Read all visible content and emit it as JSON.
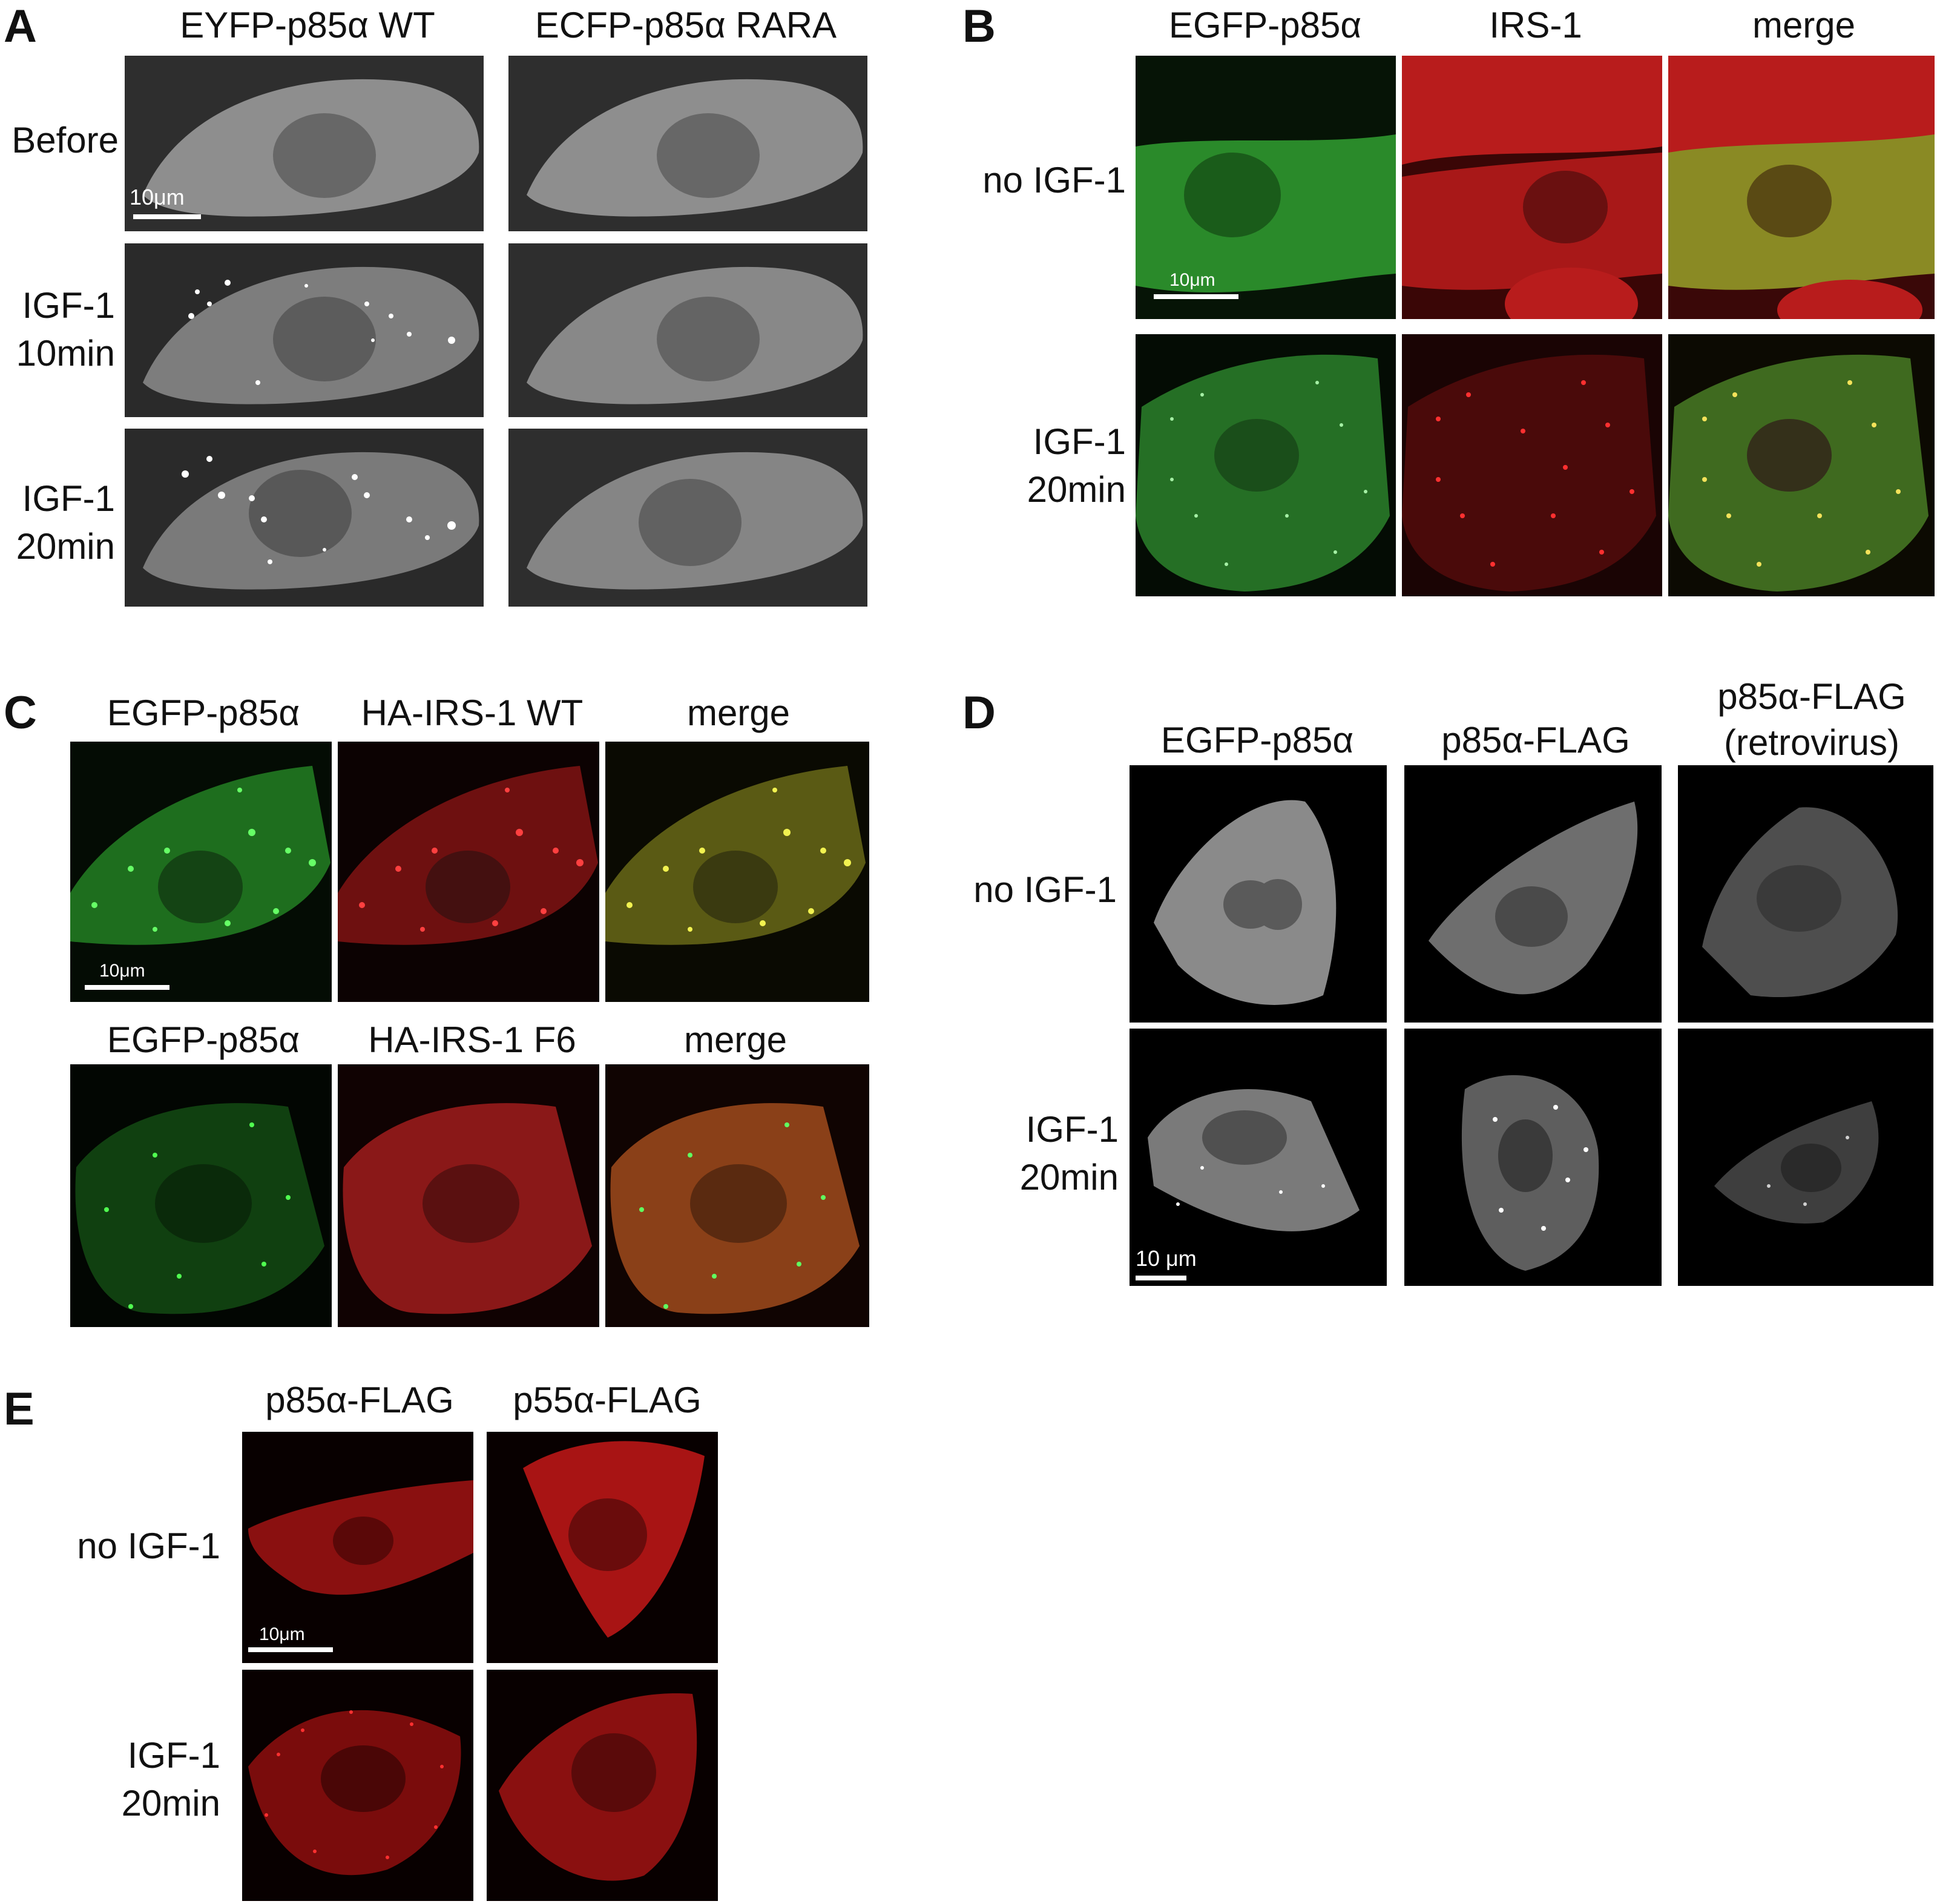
{
  "colors": {
    "background": "#ffffff",
    "text": "#111111",
    "green_channel": "#2fbf2f",
    "red_channel": "#e02020",
    "merge_channel": "#c8b030",
    "grey_cell": "#8c8c8c"
  },
  "panel_A": {
    "label": "A",
    "columns": [
      "EYFP-p85α WT",
      "ECFP-p85α RARA"
    ],
    "rows": [
      "Before",
      "IGF-1\n10min",
      "IGF-1\n20min"
    ],
    "scale_bar": "10μm"
  },
  "panel_B": {
    "label": "B",
    "columns": [
      "EGFP-p85α",
      "IRS-1",
      "merge"
    ],
    "rows": [
      "no IGF-1",
      "IGF-1\n20min"
    ],
    "scale_bar": "10μm"
  },
  "panel_C": {
    "label": "C",
    "top_columns": [
      "EGFP-p85α",
      "HA-IRS-1 WT",
      "merge"
    ],
    "bottom_columns": [
      "EGFP-p85α",
      "HA-IRS-1 F6",
      "merge"
    ],
    "scale_bar": "10μm"
  },
  "panel_D": {
    "label": "D",
    "columns": [
      "EGFP-p85α",
      "p85α-FLAG",
      "p85α-FLAG\n(retrovirus)"
    ],
    "rows": [
      "no IGF-1",
      "IGF-1\n20min"
    ],
    "scale_bar": "10 μm"
  },
  "panel_E": {
    "label": "E",
    "columns": [
      "p85α-FLAG",
      "p55α-FLAG"
    ],
    "rows": [
      "no IGF-1",
      "IGF-1\n20min"
    ],
    "scale_bar": "10μm"
  }
}
